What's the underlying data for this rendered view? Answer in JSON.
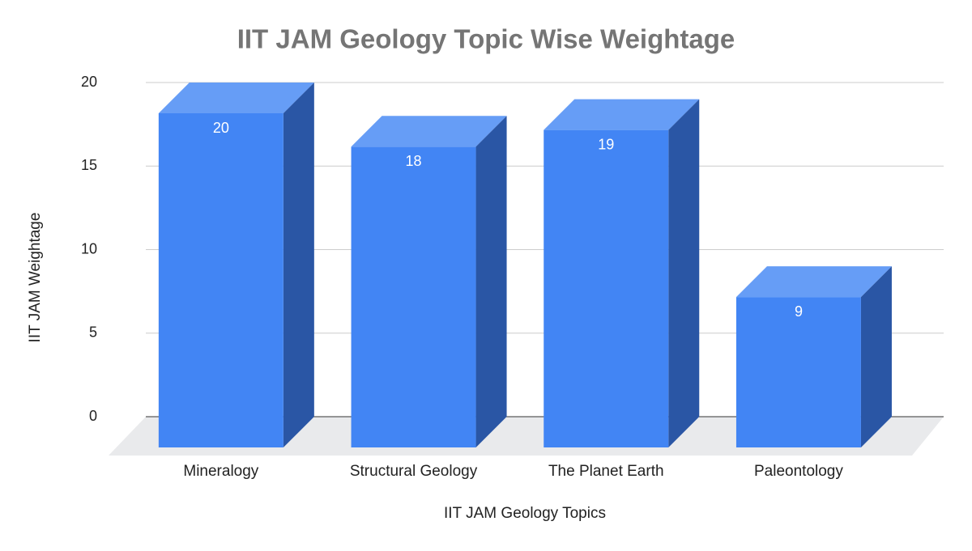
{
  "chart_data": {
    "type": "bar3d",
    "title": "IIT JAM Geology Topic Wise Weightage",
    "x_label": "IIT JAM Geology Topics",
    "y_label": "IIT JAM Weightage",
    "categories": [
      "Mineralogy",
      "Structural Geology",
      "The Planet Earth",
      "Paleontology"
    ],
    "values": [
      20,
      18,
      19,
      9
    ],
    "color": "#4285f4",
    "ylim": [
      0,
      20
    ],
    "yticks": [
      0,
      5,
      10,
      15,
      20
    ],
    "grid": true
  }
}
